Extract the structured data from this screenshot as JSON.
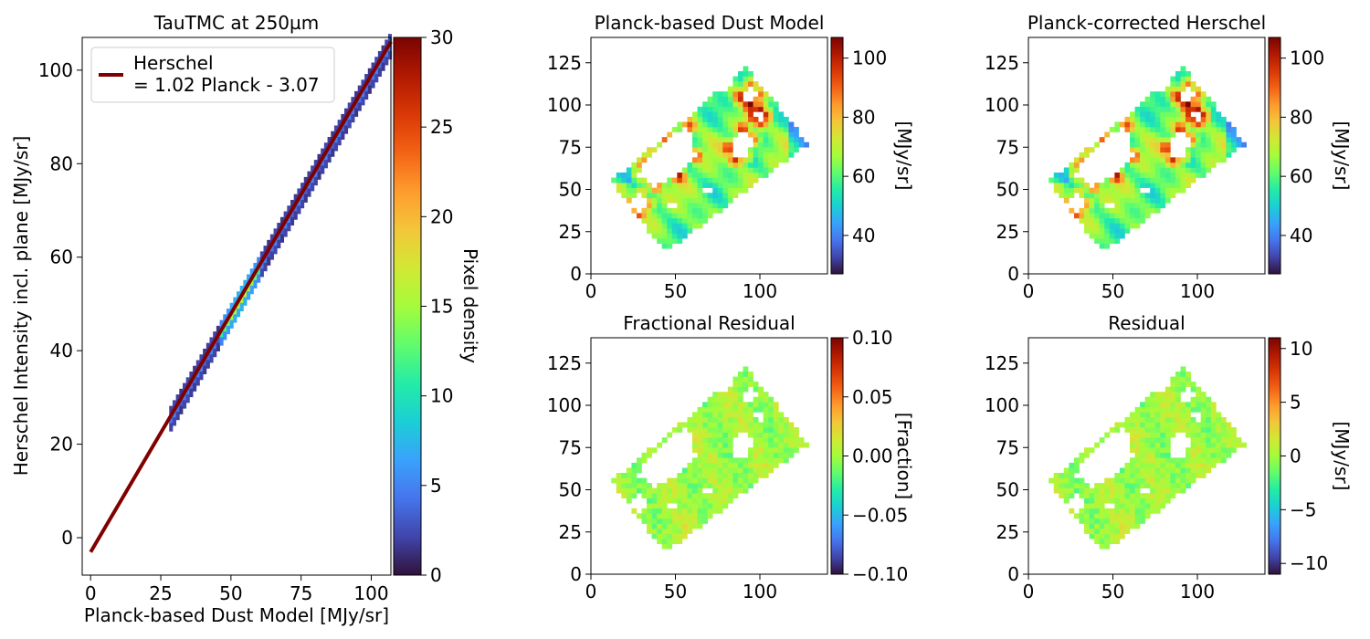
{
  "colormap": [
    "#30123b",
    "#4145ab",
    "#4675ed",
    "#39a2fc",
    "#1bcfd4",
    "#24eca6",
    "#61fc6c",
    "#a4fc3b",
    "#d1e834",
    "#f3c63a",
    "#fe9b2d",
    "#f36315",
    "#d93806",
    "#b11901",
    "#7a0402"
  ],
  "chart_data": [
    {
      "id": "density",
      "type": "heatmap",
      "title": "TauTMC at 250µm",
      "xlabel": "Planck-based Dust Model [MJy/sr]",
      "ylabel": "Herschel Intensity incl. plane [MJy/sr]",
      "xlim": [
        -3,
        107
      ],
      "ylim": [
        -8,
        107
      ],
      "xticks": [
        "0",
        "25",
        "50",
        "75",
        "100"
      ],
      "yticks": [
        "0",
        "20",
        "40",
        "60",
        "80",
        "100"
      ],
      "colorbar": {
        "label": "Pixel density",
        "range": [
          0,
          30
        ],
        "ticks": [
          "0",
          "5",
          "10",
          "15",
          "20",
          "25",
          "30"
        ]
      },
      "fit_line": {
        "name": "Herschel\n= 1.02 Planck - 3.07",
        "slope": 1.02,
        "intercept": -3.07,
        "x_range": [
          0,
          107
        ],
        "color": "#800000"
      },
      "legend": {
        "line1": "Herschel",
        "line2": "= 1.02 Planck - 3.07",
        "position": "upper-left"
      },
      "density_band": {
        "x_range": [
          28,
          107
        ],
        "peak_x": [
          45,
          60
        ],
        "peak_value": 16
      }
    },
    {
      "id": "dust_model",
      "type": "heatmap",
      "title": "Planck-based Dust Model",
      "xlim": [
        0,
        140
      ],
      "ylim": [
        0,
        140
      ],
      "xticks": [
        "0",
        "50",
        "100"
      ],
      "yticks": [
        "0",
        "25",
        "50",
        "75",
        "100",
        "125"
      ],
      "colorbar": {
        "label": "[MJy/sr]",
        "range": [
          27,
          107
        ],
        "ticks": [
          "40",
          "60",
          "80",
          "100"
        ]
      }
    },
    {
      "id": "corrected_herschel",
      "type": "heatmap",
      "title": "Planck-corrected Herschel",
      "xlim": [
        0,
        140
      ],
      "ylim": [
        0,
        140
      ],
      "xticks": [
        "0",
        "50",
        "100"
      ],
      "yticks": [
        "0",
        "25",
        "50",
        "75",
        "100",
        "125"
      ],
      "colorbar": {
        "label": "[MJy/sr]",
        "range": [
          27,
          107
        ],
        "ticks": [
          "40",
          "60",
          "80",
          "100"
        ]
      }
    },
    {
      "id": "fractional_residual",
      "type": "heatmap",
      "title": "Fractional Residual",
      "xlim": [
        0,
        140
      ],
      "ylim": [
        0,
        140
      ],
      "xticks": [
        "0",
        "50",
        "100"
      ],
      "yticks": [
        "0",
        "25",
        "50",
        "75",
        "100",
        "125"
      ],
      "colorbar": {
        "label": "[Fraction]",
        "range": [
          -0.1,
          0.1
        ],
        "ticks": [
          "−0.10",
          "−0.05",
          "0.00",
          "0.05",
          "0.10"
        ]
      }
    },
    {
      "id": "residual",
      "type": "heatmap",
      "title": "Residual",
      "xlim": [
        0,
        140
      ],
      "ylim": [
        0,
        140
      ],
      "xticks": [
        "0",
        "50",
        "100"
      ],
      "yticks": [
        "0",
        "25",
        "50",
        "75",
        "100",
        "125"
      ],
      "colorbar": {
        "label": "[MJy/sr]",
        "range": [
          -11,
          11
        ],
        "ticks": [
          "−10",
          "−5",
          "0",
          "5",
          "10"
        ]
      }
    }
  ],
  "map_footprint": {
    "corners": [
      [
        12,
        55
      ],
      [
        92,
        122
      ],
      [
        129,
        77
      ],
      [
        44,
        13
      ]
    ],
    "holes": [
      [
        [
          30,
          65
        ],
        [
          44,
          80
        ],
        [
          58,
          87
        ],
        [
          62,
          70
        ],
        [
          52,
          58
        ],
        [
          38,
          52
        ],
        [
          28,
          58
        ]
      ],
      [
        [
          22,
          40
        ],
        [
          30,
          48
        ],
        [
          34,
          42
        ],
        [
          28,
          36
        ]
      ],
      [
        [
          82,
          75
        ],
        [
          90,
          86
        ],
        [
          96,
          80
        ],
        [
          92,
          70
        ],
        [
          86,
          68
        ]
      ],
      [
        [
          88,
          105
        ],
        [
          94,
          112
        ],
        [
          99,
          106
        ],
        [
          94,
          100
        ]
      ],
      [
        [
          96,
          93
        ],
        [
          100,
          98
        ],
        [
          104,
          94
        ],
        [
          100,
          90
        ]
      ],
      [
        [
          30,
          20
        ],
        [
          34,
          25
        ],
        [
          37,
          21
        ],
        [
          33,
          17
        ]
      ],
      [
        [
          66,
          50
        ],
        [
          69,
          54
        ],
        [
          72,
          50
        ],
        [
          69,
          47
        ]
      ],
      [
        [
          76,
          112
        ],
        [
          81,
          116
        ],
        [
          84,
          112
        ],
        [
          80,
          109
        ]
      ],
      [
        [
          45,
          40
        ],
        [
          48,
          44
        ],
        [
          51,
          40
        ],
        [
          48,
          37
        ]
      ]
    ]
  }
}
